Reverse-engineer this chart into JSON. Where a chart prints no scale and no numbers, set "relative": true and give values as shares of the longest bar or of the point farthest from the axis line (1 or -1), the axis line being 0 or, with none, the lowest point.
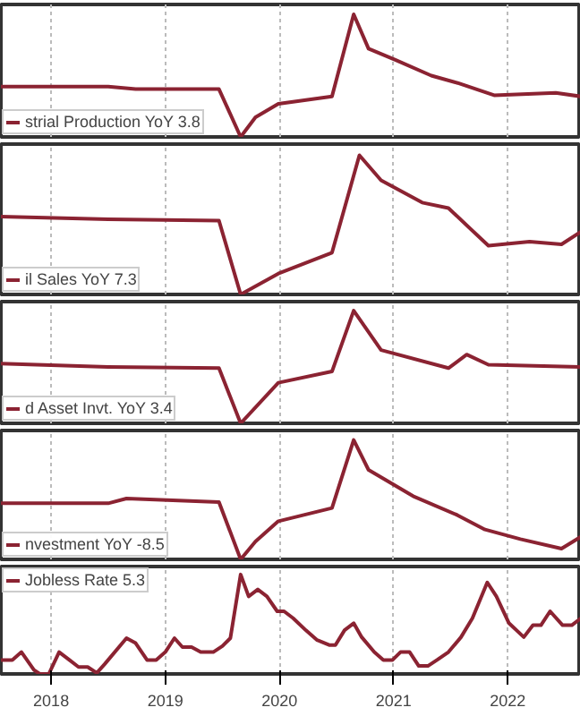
{
  "chart_data": [
    {
      "type": "line",
      "relative": true,
      "grid": "x",
      "legend": "bottom left",
      "tick_labels": false,
      "xlim": [
        2018.06,
        2023.14
      ],
      "xticks": [
        {
          "value": 2018.5,
          "label": null
        },
        {
          "value": 2019.5,
          "label": null
        },
        {
          "value": 2020.5,
          "label": null
        },
        {
          "value": 2021.5,
          "label": null
        },
        {
          "value": 2022.5,
          "label": null
        }
      ],
      "x": [
        2018.06,
        2019.0,
        2019.24,
        2019.97,
        2020.16,
        2020.29,
        2020.49,
        2020.96,
        2021.15,
        2021.28,
        2021.51,
        2021.83,
        2022.06,
        2022.38,
        2022.92,
        2023.14
      ],
      "series": [
        {
          "name": "strial Production YoY 3.8",
          "color": "#8b2332",
          "values": [
            0.41,
            0.41,
            0.39,
            0.39,
            0,
            0.16,
            0.27,
            0.33,
            1,
            0.72,
            0.63,
            0.5,
            0.44,
            0.34,
            0.36,
            0.33
          ]
        }
      ]
    },
    {
      "type": "line",
      "relative": true,
      "grid": "x",
      "legend": "bottom left",
      "tick_labels": false,
      "xlim": [
        2018.06,
        2023.14
      ],
      "xticks": [
        {
          "value": 2018.5,
          "label": null
        },
        {
          "value": 2019.5,
          "label": null
        },
        {
          "value": 2020.5,
          "label": null
        },
        {
          "value": 2021.5,
          "label": null
        },
        {
          "value": 2022.5,
          "label": null
        }
      ],
      "x": [
        2018.06,
        2019.0,
        2019.97,
        2020.16,
        2020.49,
        2020.96,
        2021.2,
        2021.39,
        2021.75,
        2021.98,
        2022.33,
        2022.69,
        2022.97,
        2023.14
      ],
      "series": [
        {
          "name": "il Sales YoY 7.3",
          "color": "#8b2332",
          "values": [
            0.56,
            0.54,
            0.53,
            0,
            0.15,
            0.3,
            1,
            0.82,
            0.66,
            0.62,
            0.35,
            0.38,
            0.36,
            0.45
          ]
        }
      ]
    },
    {
      "type": "line",
      "relative": true,
      "grid": "x",
      "legend": "bottom left",
      "tick_labels": false,
      "xlim": [
        2018.06,
        2023.14
      ],
      "xticks": [
        {
          "value": 2018.5,
          "label": null
        },
        {
          "value": 2019.5,
          "label": null
        },
        {
          "value": 2020.5,
          "label": null
        },
        {
          "value": 2021.5,
          "label": null
        },
        {
          "value": 2022.5,
          "label": null
        }
      ],
      "x": [
        2018.06,
        2019.0,
        2019.97,
        2020.16,
        2020.49,
        2020.96,
        2021.15,
        2021.39,
        2021.98,
        2022.14,
        2022.33,
        2023.14
      ],
      "series": [
        {
          "name": "d Asset Invt. YoY 3.4",
          "color": "#8b2332",
          "values": [
            0.53,
            0.5,
            0.49,
            0,
            0.36,
            0.46,
            1,
            0.65,
            0.49,
            0.61,
            0.52,
            0.5
          ]
        }
      ]
    },
    {
      "type": "line",
      "relative": true,
      "grid": "x",
      "legend": "bottom left",
      "tick_labels": false,
      "xlim": [
        2018.06,
        2023.14
      ],
      "xticks": [
        {
          "value": 2018.5,
          "label": null
        },
        {
          "value": 2019.5,
          "label": null
        },
        {
          "value": 2020.5,
          "label": null
        },
        {
          "value": 2021.5,
          "label": null
        },
        {
          "value": 2022.5,
          "label": null
        }
      ],
      "x": [
        2018.06,
        2019.0,
        2019.16,
        2019.97,
        2020.16,
        2020.29,
        2020.49,
        2020.96,
        2021.15,
        2021.28,
        2021.67,
        2022.06,
        2022.3,
        2022.61,
        2022.97,
        2023.14
      ],
      "series": [
        {
          "name": "nvestment YoY -8.5",
          "color": "#8b2332",
          "values": [
            0.47,
            0.47,
            0.51,
            0.48,
            0,
            0.15,
            0.32,
            0.43,
            1,
            0.75,
            0.53,
            0.37,
            0.25,
            0.17,
            0.09,
            0.19
          ]
        }
      ]
    },
    {
      "type": "line",
      "relative": true,
      "grid": "x",
      "legend": "top left",
      "tick_labels": "x",
      "xlim": [
        2018.06,
        2023.14
      ],
      "xticks": [
        {
          "value": 2018.5,
          "label": "2018"
        },
        {
          "value": 2019.5,
          "label": "2019"
        },
        {
          "value": 2020.5,
          "label": "2020"
        },
        {
          "value": 2021.5,
          "label": "2021"
        },
        {
          "value": 2022.5,
          "label": "2022"
        }
      ],
      "x": [
        2018.06,
        2018.16,
        2018.24,
        2018.35,
        2018.4,
        2018.48,
        2018.57,
        2018.66,
        2018.74,
        2018.82,
        2018.9,
        2018.97,
        2019.16,
        2019.24,
        2019.34,
        2019.42,
        2019.5,
        2019.58,
        2019.65,
        2019.73,
        2019.81,
        2019.92,
        2020.0,
        2020.07,
        2020.16,
        2020.23,
        2020.31,
        2020.39,
        2020.48,
        2020.54,
        2020.62,
        2020.73,
        2020.83,
        2020.94,
        2020.99,
        2021.07,
        2021.15,
        2021.22,
        2021.33,
        2021.41,
        2021.49,
        2021.56,
        2021.64,
        2021.72,
        2021.8,
        2021.88,
        2021.98,
        2022.09,
        2022.19,
        2022.32,
        2022.4,
        2022.51,
        2022.64,
        2022.72,
        2022.79,
        2022.87,
        2022.98,
        2023.06,
        2023.14
      ],
      "series": [
        {
          "name": "Jobless Rate 5.3",
          "color": "#8b2332",
          "values": [
            0.14,
            0.14,
            0.22,
            0.04,
            0,
            0,
            0.22,
            0.14,
            0.07,
            0.07,
            0.01,
            0.1,
            0.36,
            0.31,
            0.14,
            0.14,
            0.22,
            0.36,
            0.27,
            0.27,
            0.22,
            0.22,
            0.28,
            0.36,
            1,
            0.78,
            0.85,
            0.78,
            0.63,
            0.63,
            0.56,
            0.44,
            0.34,
            0.29,
            0.29,
            0.44,
            0.51,
            0.37,
            0.22,
            0.14,
            0.14,
            0.22,
            0.22,
            0.08,
            0.08,
            0.14,
            0.22,
            0.37,
            0.56,
            0.92,
            0.78,
            0.51,
            0.37,
            0.49,
            0.49,
            0.63,
            0.49,
            0.49,
            0.56
          ]
        }
      ]
    }
  ]
}
